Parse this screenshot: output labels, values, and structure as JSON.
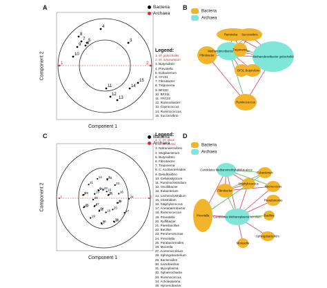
{
  "panels": {
    "a": {
      "letter": "A",
      "xlabel": "Component 1",
      "ylabel": "Component 2",
      "key": [
        {
          "label": "Bacteria",
          "color": "#000000"
        },
        {
          "label": "Archaea",
          "color": "#e0262a"
        }
      ],
      "legend_title": "Legend:",
      "legend": [
        "1. M. gottschalkii",
        "2. M. ruminantium",
        "3. Butyrivibrio",
        "4. Prevotella",
        "5. Eubacterium",
        "6. CF231",
        "7. Fibrobacter",
        "8. Treponema",
        "9. BF420",
        "10. BF311",
        "11. YRC22",
        "12. Ruminobacter",
        "13. Coprococcus",
        "14. Ruminococcus",
        "15. Succinivibrio"
      ]
    },
    "b": {
      "letter": "B",
      "key": [
        {
          "label": "Bacteria",
          "color": "#f2b42b"
        },
        {
          "label": "Archaea",
          "color": "#7fe6d8"
        }
      ]
    },
    "c": {
      "letter": "C",
      "xlabel": "Component 1",
      "ylabel": "Component 2",
      "key": [
        {
          "label": "Bacteria",
          "color": "#000000"
        },
        {
          "label": "Archaea",
          "color": "#e0262a"
        }
      ],
      "legend_title": "Legend:",
      "legend": [
        "1. C. M. alvus",
        "2. C. M. arvinii",
        "3. Natranaerovibrio",
        "4. Mogibacterium",
        "5. Butyrivibrio",
        "6. Fibrobacter",
        "7. Treponema",
        "8. C. Accibacterioides",
        "9. Desulfovibrio",
        "10. Cellulosilyticum",
        "11. Ruminoclostridium",
        "12. Oscillibacter",
        "13. Eubacterium",
        "14. Lachnoclostridium",
        "15. Clostridium",
        "16. Staphylococcus",
        "17. Acetanaerobacter",
        "18. Ruminococcus",
        "19. Prevotella",
        "20. Ruffibacter",
        "21. Paenibacillus",
        "22. Bacillus",
        "23. Peroheromonas",
        "24. Prevotella",
        "25. Parabacteroides",
        "26. Moorella",
        "27. Acetomicrobium",
        "28. Sphingobacterium",
        "29. Bacteroides",
        "30. Lactobacillus",
        "31. Mycoplasma",
        "32. Sphaerochaeta",
        "33. Ruminococcus",
        "34. Acholeplasma",
        "35. Hymenobacter"
      ]
    },
    "d": {
      "letter": "D",
      "key": [
        {
          "label": "Bacteria",
          "color": "#f2b42b"
        },
        {
          "label": "Archaea",
          "color": "#7fe6d8"
        }
      ]
    }
  },
  "plotA_points": [
    {
      "label": "1",
      "color": "#e0262a"
    },
    {
      "label": "2",
      "color": "#e0262a"
    },
    {
      "label": "3",
      "color": "#000000"
    },
    {
      "label": "4",
      "color": "#000000"
    },
    {
      "label": "5",
      "color": "#000000"
    },
    {
      "label": "6",
      "color": "#000000"
    },
    {
      "label": "7",
      "color": "#000000"
    },
    {
      "label": "8",
      "color": "#000000"
    },
    {
      "label": "9",
      "color": "#000000"
    },
    {
      "label": "10",
      "color": "#000000"
    },
    {
      "label": "11",
      "color": "#000000"
    },
    {
      "label": "12",
      "color": "#000000"
    },
    {
      "label": "13",
      "color": "#000000"
    },
    {
      "label": "14",
      "color": "#000000"
    },
    {
      "label": "15",
      "color": "#000000"
    }
  ],
  "plotC_points_labels": [
    "1",
    "2",
    "3",
    "4",
    "5",
    "6",
    "7",
    "8",
    "9",
    "10",
    "11",
    "12",
    "13",
    "14",
    "15",
    "16",
    "17",
    "18",
    "19",
    "20",
    "21",
    "22",
    "23",
    "24",
    "25",
    "26",
    "27",
    "28",
    "29",
    "30",
    "31",
    "32",
    "33",
    "34",
    "35"
  ],
  "netB_nodes": [
    {
      "label": "Ruminobacter",
      "type": "bacteria"
    },
    {
      "label": "Succinivibrio",
      "type": "bacteria"
    },
    {
      "label": "Fibrobacter",
      "type": "bacteria"
    },
    {
      "label": "Methanobrevibacter ruminantium",
      "type": "archaea"
    },
    {
      "label": "Treponema",
      "type": "bacteria"
    },
    {
      "label": "Methanobrevibacter gottschalkii",
      "type": "archaea"
    },
    {
      "label": "BF311",
      "type": "bacteria"
    },
    {
      "label": "Butyrivibrio",
      "type": "bacteria"
    },
    {
      "label": "Ruminococcus",
      "type": "bacteria"
    }
  ],
  "netD_nodes": [
    {
      "label": "Candidatus Methanomethylophilus alvus",
      "type": "archaea"
    },
    {
      "label": "Eubacterium",
      "type": "bacteria"
    },
    {
      "label": "Staphylococcus",
      "type": "bacteria"
    },
    {
      "label": "Fibrobacter",
      "type": "bacteria"
    },
    {
      "label": "Macrococcus",
      "type": "bacteria"
    },
    {
      "label": "Prevotella",
      "type": "bacteria"
    },
    {
      "label": "Candidatus Methanoplasma termitum",
      "type": "archaea"
    },
    {
      "label": "Pseudomonas",
      "type": "bacteria"
    },
    {
      "label": "Bacillus",
      "type": "bacteria"
    },
    {
      "label": "Sphingobacterium",
      "type": "bacteria"
    },
    {
      "label": "Moraxella",
      "type": "bacteria"
    }
  ]
}
